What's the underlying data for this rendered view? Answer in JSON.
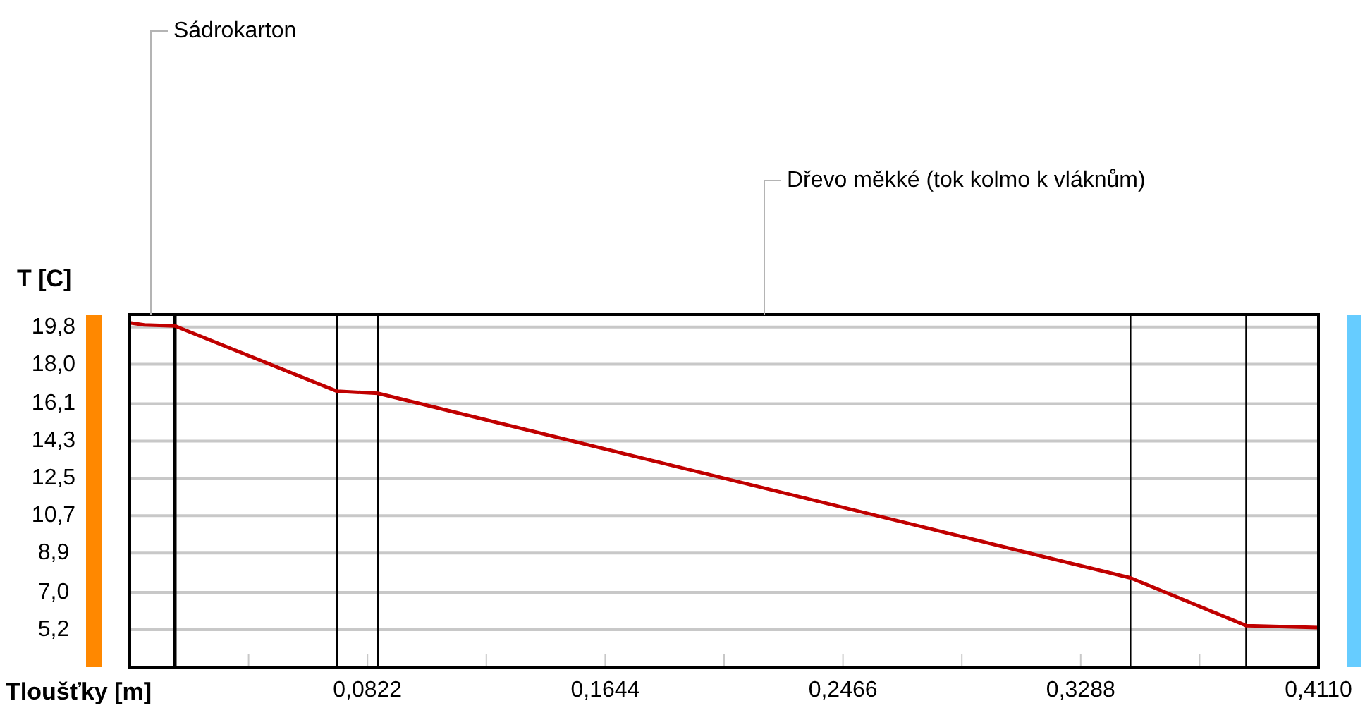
{
  "chart_data": {
    "type": "line",
    "xlabel": "Tloušťky [m]",
    "ylabel": "T [C]",
    "x": [
      0,
      0.005,
      0.0156,
      0.0717,
      0.0858,
      0.346,
      0.386,
      0.411
    ],
    "series": [
      {
        "color": "#c00000",
        "values": [
          20.0,
          19.9,
          19.85,
          16.7,
          16.6,
          7.7,
          5.4,
          5.3
        ]
      }
    ],
    "xlim": [
      0,
      0.411
    ],
    "ylim": [
      3.4,
      20.4
    ],
    "xticks": [
      {
        "value": 0.0411,
        "label": null
      },
      {
        "value": 0.0822,
        "label": "0,0822"
      },
      {
        "value": 0.1233,
        "label": null
      },
      {
        "value": 0.1644,
        "label": "0,1644"
      },
      {
        "value": 0.2055,
        "label": null
      },
      {
        "value": 0.2466,
        "label": "0,2466"
      },
      {
        "value": 0.2877,
        "label": null
      },
      {
        "value": 0.3288,
        "label": "0,3288"
      },
      {
        "value": 0.3699,
        "label": null
      },
      {
        "value": 0.411,
        "label": "0,4110"
      }
    ],
    "yticks": [
      {
        "value": 5.2,
        "label": "5,2"
      },
      {
        "value": 7.0,
        "label": "7,0"
      },
      {
        "value": 8.9,
        "label": "8,9"
      },
      {
        "value": 10.7,
        "label": "10,7"
      },
      {
        "value": 12.5,
        "label": "12,5"
      },
      {
        "value": 14.3,
        "label": "14,3"
      },
      {
        "value": 16.1,
        "label": "16,1"
      },
      {
        "value": 18.0,
        "label": "18,0"
      },
      {
        "value": 19.8,
        "label": "19,8"
      }
    ],
    "grid": "y",
    "marker": "none",
    "ref_lines": [
      {
        "axis": "x",
        "value": 0.0156,
        "color": "#000000"
      },
      {
        "axis": "x",
        "value": 0.0717,
        "color": "#000000"
      },
      {
        "axis": "x",
        "value": 0.0858,
        "color": "#000000"
      },
      {
        "axis": "x",
        "value": 0.346,
        "color": "#000000"
      },
      {
        "axis": "x",
        "value": 0.386,
        "color": "#000000"
      }
    ],
    "annotations": [
      "Sádrokarton",
      "Dřevo měkké (tok kolmo k vláknům)"
    ]
  }
}
